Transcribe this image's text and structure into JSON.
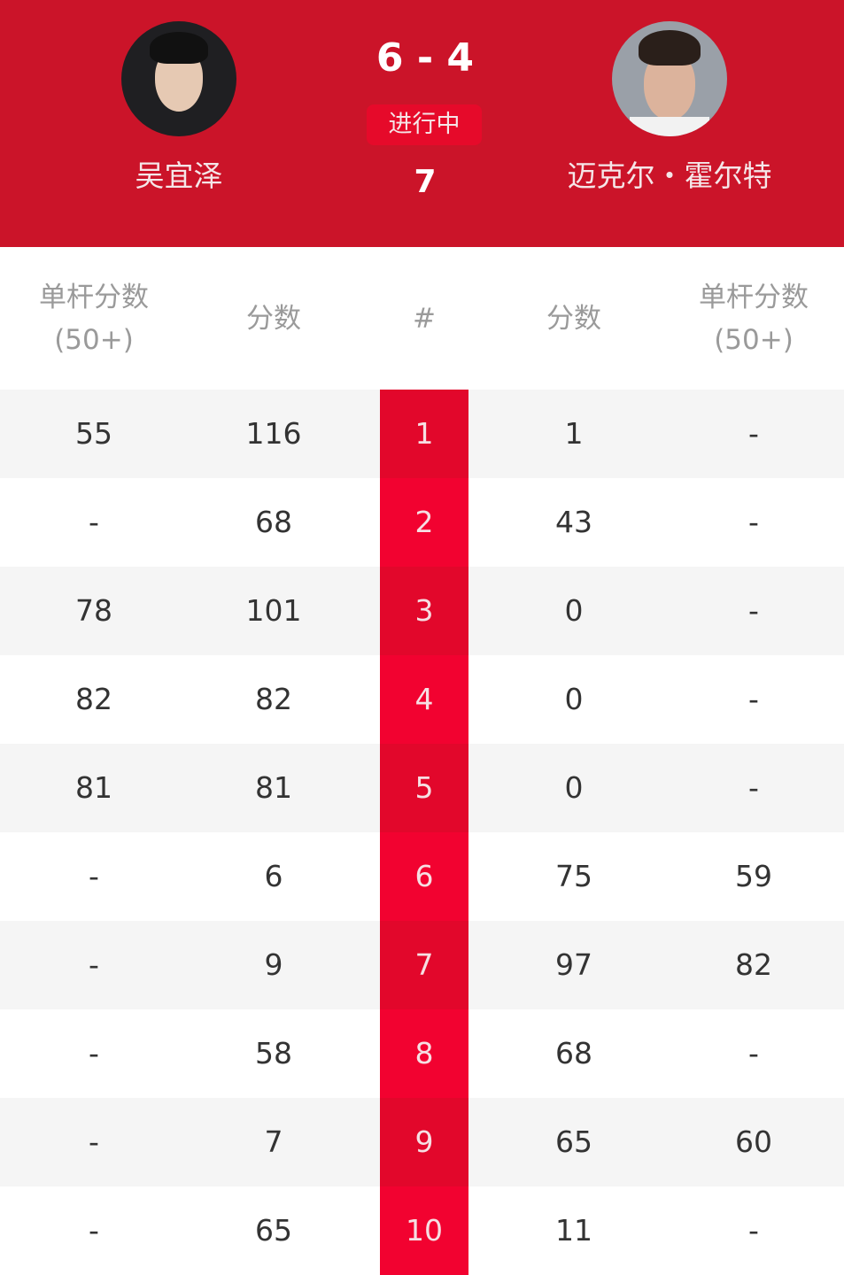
{
  "header": {
    "player_left": {
      "name": "吴宜泽",
      "avatar": "player-photo"
    },
    "player_right": {
      "name": "迈克尔・霍尔特",
      "avatar": "player-photo"
    },
    "score": "6 - 4",
    "status": "进行中",
    "current_frame": "7",
    "colors": {
      "header_bg": "#CB1429",
      "accent": "#EC0A2D"
    }
  },
  "table": {
    "col_left_break": {
      "line1": "单杆分数",
      "line2": "(50+)"
    },
    "col_left_score": "分数",
    "col_frame": "#",
    "col_right_score": "分数",
    "col_right_break": {
      "line1": "单杆分数",
      "line2": "(50+)"
    },
    "rows": [
      {
        "lb": "55",
        "ls": "116",
        "f": "1",
        "rs": "1",
        "rb": "-"
      },
      {
        "lb": "-",
        "ls": "68",
        "f": "2",
        "rs": "43",
        "rb": "-"
      },
      {
        "lb": "78",
        "ls": "101",
        "f": "3",
        "rs": "0",
        "rb": "-"
      },
      {
        "lb": "82",
        "ls": "82",
        "f": "4",
        "rs": "0",
        "rb": "-"
      },
      {
        "lb": "81",
        "ls": "81",
        "f": "5",
        "rs": "0",
        "rb": "-"
      },
      {
        "lb": "-",
        "ls": "6",
        "f": "6",
        "rs": "75",
        "rb": "59"
      },
      {
        "lb": "-",
        "ls": "9",
        "f": "7",
        "rs": "97",
        "rb": "82"
      },
      {
        "lb": "-",
        "ls": "58",
        "f": "8",
        "rs": "68",
        "rb": "-"
      },
      {
        "lb": "-",
        "ls": "7",
        "f": "9",
        "rs": "65",
        "rb": "60"
      },
      {
        "lb": "-",
        "ls": "65",
        "f": "10",
        "rs": "11",
        "rb": "-"
      }
    ]
  }
}
